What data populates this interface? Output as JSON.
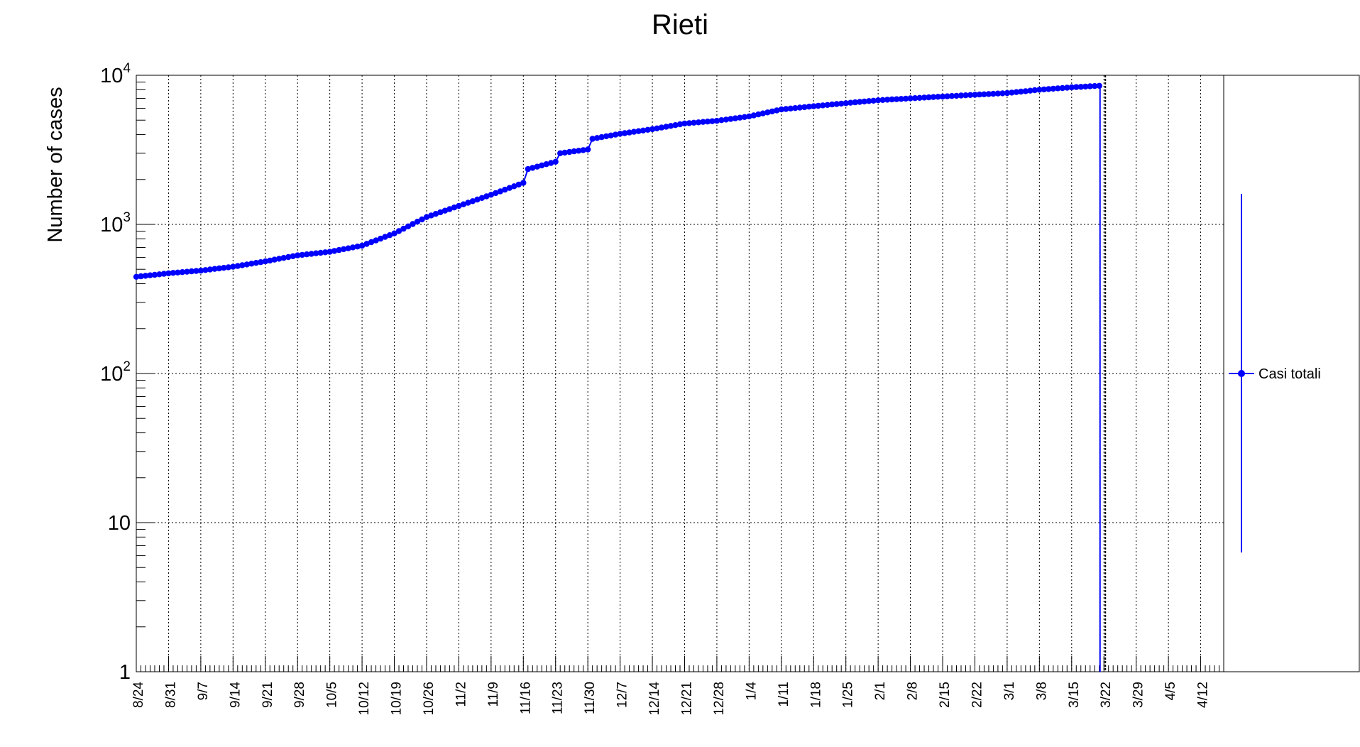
{
  "chart_data": {
    "type": "line",
    "title": "Rieti",
    "xlabel": "",
    "ylabel": "Number of cases",
    "y_scale": "log",
    "ylim": [
      1,
      10000
    ],
    "xlim": [
      "2020-08-24",
      "2021-04-17"
    ],
    "grid": true,
    "legend_position": "right",
    "series_color": "#0000ff",
    "x_tick_labels": [
      "8/24",
      "8/31",
      "9/7",
      "9/14",
      "9/21",
      "9/28",
      "10/5",
      "10/12",
      "10/19",
      "10/26",
      "11/2",
      "11/9",
      "11/16",
      "11/23",
      "11/30",
      "12/7",
      "12/14",
      "12/21",
      "12/28",
      "1/4",
      "1/11",
      "1/18",
      "1/25",
      "2/1",
      "2/8",
      "2/15",
      "2/22",
      "3/1",
      "3/8",
      "3/15",
      "3/22",
      "3/29",
      "4/5",
      "4/12"
    ],
    "y_tick_labels": [
      {
        "value": 1,
        "base": "1",
        "exp": ""
      },
      {
        "value": 10,
        "base": "10",
        "exp": ""
      },
      {
        "value": 100,
        "base": "10",
        "exp": "2"
      },
      {
        "value": 1000,
        "base": "10",
        "exp": "3"
      },
      {
        "value": 10000,
        "base": "10",
        "exp": "4"
      }
    ],
    "vertical_marker_date": "2021-03-22",
    "series": [
      {
        "name": "Casi totali",
        "x": [
          "2020-08-24",
          "2020-08-31",
          "2020-09-07",
          "2020-09-14",
          "2020-09-21",
          "2020-09-28",
          "2020-10-05",
          "2020-10-12",
          "2020-10-19",
          "2020-10-26",
          "2020-11-02",
          "2020-11-09",
          "2020-11-16",
          "2020-11-17",
          "2020-11-23",
          "2020-11-24",
          "2020-11-30",
          "2020-12-01",
          "2020-12-07",
          "2020-12-14",
          "2020-12-21",
          "2020-12-28",
          "2021-01-04",
          "2021-01-11",
          "2021-01-18",
          "2021-01-25",
          "2021-02-01",
          "2021-02-08",
          "2021-02-15",
          "2021-02-22",
          "2021-03-01",
          "2021-03-08",
          "2021-03-15",
          "2021-03-21"
        ],
        "y": [
          445,
          470,
          490,
          520,
          565,
          620,
          655,
          720,
          870,
          1120,
          1330,
          1580,
          1900,
          2350,
          2630,
          3000,
          3180,
          3750,
          4050,
          4350,
          4750,
          4950,
          5300,
          5900,
          6200,
          6500,
          6800,
          7000,
          7200,
          7400,
          7600,
          8000,
          8300,
          8500
        ]
      }
    ]
  }
}
